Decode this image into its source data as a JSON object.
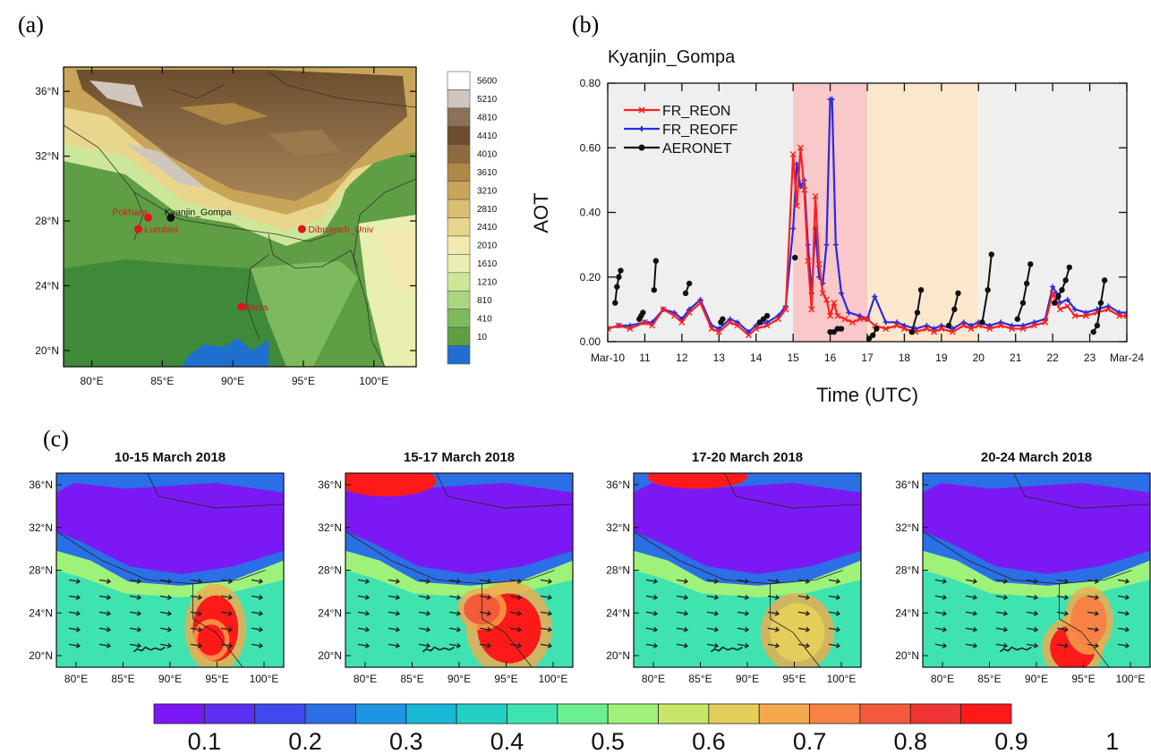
{
  "panel_letters": [
    "(a)",
    "(b)",
    "(c)"
  ],
  "colors": {
    "fr_reon": "#ff2020",
    "fr_reoff": "#2a2ae0",
    "aeronet": "#111111",
    "shade_1": "#efefef",
    "shade_2": "#f9c8c8",
    "shade_3": "#fbe8cc",
    "shade_4": "#efefef",
    "site_marker": "#e0141e",
    "site_label_red": "#d21a1a",
    "site_label_black": "#111111"
  },
  "panel_a": {
    "lon_ticks": [
      "80°E",
      "85°E",
      "90°E",
      "95°E",
      "100°E"
    ],
    "lat_ticks": [
      "36°N",
      "32°N",
      "28°N",
      "24°N",
      "20°N"
    ],
    "elevation_legend": [
      "5600",
      "5210",
      "4810",
      "4410",
      "4010",
      "3610",
      "3210",
      "2810",
      "2410",
      "2010",
      "1610",
      "1210",
      "810",
      "410",
      "10"
    ],
    "elevation_colors": [
      "#ffffff",
      "#cfc6bd",
      "#8a7157",
      "#6b4e2d",
      "#8f6a3c",
      "#b08845",
      "#c9a55a",
      "#d8bf72",
      "#e9d68d",
      "#f3e9ae",
      "#e8efb0",
      "#cde79a",
      "#a9d67f",
      "#7dba5d",
      "#5f9e45",
      "#1f6fd1"
    ],
    "sites": [
      {
        "name": "Pokhara",
        "lon": 84.0,
        "lat": 28.2,
        "color": "red"
      },
      {
        "name": "Kyanjin_Gompa",
        "lon": 85.6,
        "lat": 28.2,
        "color": "black"
      },
      {
        "name": "Lumbini",
        "lon": 83.3,
        "lat": 27.5,
        "color": "red"
      },
      {
        "name": "Dibrugarh_Univ",
        "lon": 94.9,
        "lat": 27.5,
        "color": "red"
      },
      {
        "name": "Bhola",
        "lon": 90.6,
        "lat": 22.7,
        "color": "red"
      }
    ]
  },
  "chart_data": [
    {
      "type": "line",
      "panel": "(b)",
      "title": "Kyanjin_Gompa",
      "xlabel": "Time (UTC)",
      "ylabel": "AOT",
      "ylim": [
        0,
        0.8
      ],
      "xlim": [
        10,
        24
      ],
      "x_tick_labels": [
        "Mar-10",
        "11",
        "12",
        "13",
        "14",
        "15",
        "16",
        "17",
        "18",
        "19",
        "20",
        "21",
        "22",
        "23",
        "Mar-24"
      ],
      "y_tick_labels": [
        "0.00",
        "0.20",
        "0.40",
        "0.60",
        "0.80"
      ],
      "legend_placement": "top-left",
      "shaded_periods": [
        [
          10,
          15
        ],
        [
          15,
          17
        ],
        [
          17,
          20
        ],
        [
          20,
          24
        ]
      ],
      "series": [
        {
          "name": "FR_REON",
          "x": [
            10.0,
            10.3,
            10.6,
            11.0,
            11.2,
            11.5,
            11.8,
            12.0,
            12.2,
            12.5,
            12.8,
            13.0,
            13.3,
            13.5,
            13.8,
            14.0,
            14.3,
            14.6,
            14.8,
            15.0,
            15.1,
            15.2,
            15.3,
            15.4,
            15.5,
            15.6,
            15.7,
            15.8,
            15.9,
            16.0,
            16.1,
            16.2,
            16.4,
            16.6,
            16.8,
            17.0,
            17.2,
            17.5,
            17.8,
            18.0,
            18.3,
            18.6,
            18.8,
            19.0,
            19.3,
            19.6,
            19.8,
            20.0,
            20.3,
            20.6,
            20.9,
            21.2,
            21.5,
            21.8,
            22.0,
            22.1,
            22.2,
            22.4,
            22.6,
            22.9,
            23.2,
            23.5,
            23.8,
            24.0
          ],
          "y": [
            0.04,
            0.05,
            0.04,
            0.06,
            0.05,
            0.1,
            0.08,
            0.06,
            0.09,
            0.12,
            0.04,
            0.03,
            0.06,
            0.05,
            0.02,
            0.04,
            0.05,
            0.07,
            0.1,
            0.58,
            0.42,
            0.6,
            0.47,
            0.25,
            0.1,
            0.45,
            0.24,
            0.15,
            0.13,
            0.08,
            0.12,
            0.08,
            0.07,
            0.06,
            0.07,
            0.07,
            0.05,
            0.04,
            0.05,
            0.04,
            0.03,
            0.04,
            0.03,
            0.04,
            0.03,
            0.05,
            0.04,
            0.05,
            0.04,
            0.05,
            0.04,
            0.04,
            0.05,
            0.06,
            0.15,
            0.12,
            0.1,
            0.11,
            0.08,
            0.08,
            0.09,
            0.1,
            0.08,
            0.08
          ]
        },
        {
          "name": "FR_REOFF",
          "x": [
            10.0,
            10.3,
            10.6,
            11.0,
            11.2,
            11.5,
            11.8,
            12.0,
            12.2,
            12.5,
            12.8,
            13.0,
            13.3,
            13.5,
            13.8,
            14.0,
            14.3,
            14.6,
            14.8,
            15.0,
            15.1,
            15.2,
            15.3,
            15.4,
            15.5,
            15.6,
            15.7,
            15.8,
            15.9,
            16.0,
            16.05,
            16.15,
            16.3,
            16.5,
            16.8,
            17.0,
            17.2,
            17.5,
            17.8,
            18.0,
            18.3,
            18.6,
            18.8,
            19.0,
            19.3,
            19.6,
            19.8,
            20.0,
            20.3,
            20.6,
            20.9,
            21.2,
            21.5,
            21.8,
            22.0,
            22.1,
            22.2,
            22.4,
            22.6,
            22.9,
            23.2,
            23.5,
            23.8,
            24.0
          ],
          "y": [
            0.04,
            0.05,
            0.05,
            0.06,
            0.06,
            0.1,
            0.09,
            0.07,
            0.1,
            0.13,
            0.05,
            0.04,
            0.07,
            0.06,
            0.03,
            0.05,
            0.06,
            0.08,
            0.11,
            0.35,
            0.55,
            0.48,
            0.5,
            0.3,
            0.15,
            0.35,
            0.2,
            0.18,
            0.3,
            0.75,
            0.75,
            0.3,
            0.15,
            0.09,
            0.08,
            0.07,
            0.14,
            0.06,
            0.06,
            0.05,
            0.04,
            0.05,
            0.04,
            0.05,
            0.04,
            0.06,
            0.05,
            0.06,
            0.05,
            0.06,
            0.05,
            0.05,
            0.06,
            0.07,
            0.17,
            0.15,
            0.12,
            0.13,
            0.1,
            0.09,
            0.1,
            0.11,
            0.09,
            0.09
          ]
        },
        {
          "name": "AERONET",
          "segments": [
            {
              "x": [
                10.2,
                10.25,
                10.3,
                10.35
              ],
              "y": [
                0.12,
                0.17,
                0.2,
                0.22
              ]
            },
            {
              "x": [
                10.85,
                10.9,
                10.95
              ],
              "y": [
                0.07,
                0.08,
                0.09
              ]
            },
            {
              "x": [
                11.25,
                11.3
              ],
              "y": [
                0.16,
                0.25
              ]
            },
            {
              "x": [
                12.1,
                12.2
              ],
              "y": [
                0.15,
                0.18
              ]
            },
            {
              "x": [
                13.05,
                13.1
              ],
              "y": [
                0.06,
                0.07
              ]
            },
            {
              "x": [
                14.1,
                14.2,
                14.3
              ],
              "y": [
                0.06,
                0.07,
                0.08
              ]
            },
            {
              "x": [
                15.05
              ],
              "y": [
                0.26
              ]
            },
            {
              "x": [
                16.0,
                16.1,
                16.2,
                16.3
              ],
              "y": [
                0.03,
                0.03,
                0.04,
                0.04
              ]
            },
            {
              "x": [
                17.05,
                17.15,
                17.25
              ],
              "y": [
                0.01,
                0.02,
                0.04
              ]
            },
            {
              "x": [
                18.2,
                18.35,
                18.45
              ],
              "y": [
                0.03,
                0.09,
                0.16
              ]
            },
            {
              "x": [
                19.2,
                19.35,
                19.45
              ],
              "y": [
                0.05,
                0.1,
                0.15
              ]
            },
            {
              "x": [
                20.1,
                20.25,
                20.35
              ],
              "y": [
                0.06,
                0.16,
                0.27
              ]
            },
            {
              "x": [
                21.05,
                21.2,
                21.3,
                21.4
              ],
              "y": [
                0.07,
                0.12,
                0.18,
                0.24
              ]
            },
            {
              "x": [
                22.05,
                22.15,
                22.25,
                22.35,
                22.45
              ],
              "y": [
                0.12,
                0.14,
                0.16,
                0.19,
                0.23
              ]
            },
            {
              "x": [
                23.1,
                23.2,
                23.3,
                23.4
              ],
              "y": [
                0.03,
                0.05,
                0.12,
                0.19
              ]
            }
          ]
        }
      ]
    },
    {
      "type": "heatmap",
      "panel": "(c)",
      "titles": [
        "10-15 March 2018",
        "15-17 March 2018",
        "17-20 March 2018",
        "20-24 March 2018"
      ],
      "lon_ticks": [
        "80°E",
        "85°E",
        "90°E",
        "95°E",
        "100°E"
      ],
      "lat_ticks": [
        "36°N",
        "32°N",
        "28°N",
        "24°N",
        "20°N"
      ],
      "colorbar_labels": [
        "0.1",
        "0.2",
        "0.3",
        "0.4",
        "0.5",
        "0.6",
        "0.7",
        "0.8",
        "0.9",
        "1"
      ],
      "colorbar_colors": [
        "#7b19f5",
        "#5d2ff0",
        "#3f49ec",
        "#2b6fe6",
        "#1d95e0",
        "#17b7d5",
        "#22d0c3",
        "#3ee3b0",
        "#6cf08f",
        "#9ef27a",
        "#c7e866",
        "#e5cd5a",
        "#f4a94e",
        "#f88245",
        "#f55a3b",
        "#ef3533",
        "#ff1a1a"
      ]
    }
  ]
}
